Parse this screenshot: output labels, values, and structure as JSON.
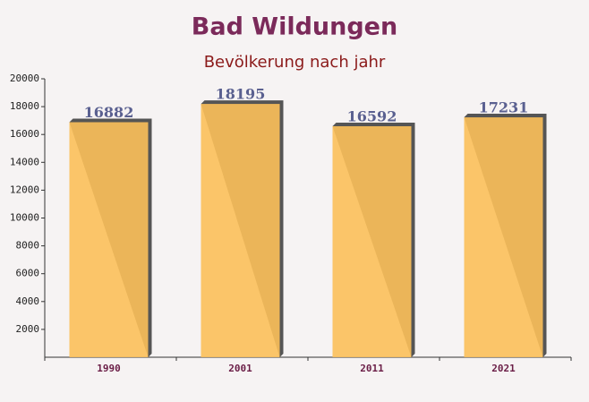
{
  "chart_data": {
    "type": "bar",
    "title": "Bad Wildungen",
    "subtitle": "Bevölkerung nach jahr",
    "categories": [
      "1990",
      "2001",
      "2011",
      "2021"
    ],
    "values": [
      16882,
      18195,
      16592,
      17231
    ],
    "color": "#fcc05a",
    "ylim": [
      0,
      20000
    ],
    "yticks": [
      2000,
      4000,
      6000,
      8000,
      10000,
      12000,
      14000,
      16000,
      18000,
      20000
    ]
  }
}
